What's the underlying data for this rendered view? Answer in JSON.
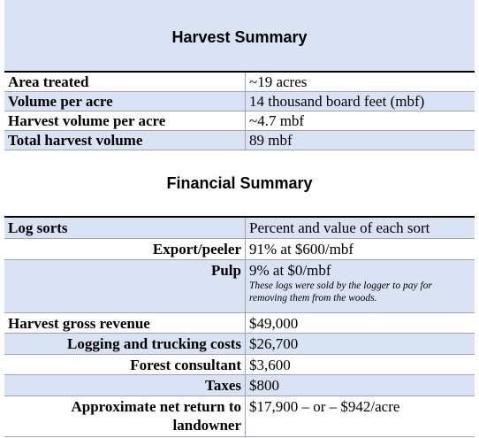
{
  "harvest_summary": {
    "title": "Harvest Summary",
    "rows": [
      [
        "Area treated",
        "~19 acres"
      ],
      [
        "Volume per acre",
        "14 thousand board feet (mbf)"
      ],
      [
        "Harvest volume per acre",
        "~4.7 mbf"
      ],
      [
        "Total harvest volume",
        "89 mbf"
      ]
    ]
  },
  "financial_summary": {
    "title": "Financial Summary",
    "rows": [
      {
        "label": "Log sorts",
        "value": "Percent and value of each sort"
      },
      {
        "label": "Export/peeler",
        "value": "91% at $600/mbf"
      },
      {
        "label": "Pulp",
        "value": "9% at $0/mbf",
        "note": "These logs were sold by the logger to pay for removing them from the woods."
      },
      {
        "label": "Harvest gross revenue",
        "value": "$49,000"
      },
      {
        "label": "Logging and trucking costs",
        "value": "$26,700"
      },
      {
        "label": "Forest consultant",
        "value": "$3,600"
      },
      {
        "label": "Taxes",
        "value": "$800"
      },
      {
        "label": "Approximate net return to landowner",
        "value": "$17,900 – or – $942/acre"
      }
    ]
  }
}
